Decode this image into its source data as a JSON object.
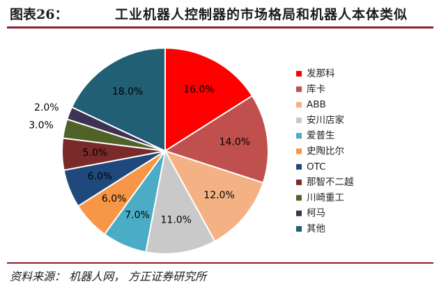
{
  "header": {
    "figure_label": "图表26：",
    "title": "工业机器人控制器的市场格局和机器人本体类似"
  },
  "source": "资料来源： 机器人网， 方正证券研究所",
  "chart_data": {
    "type": "pie",
    "unit": "%",
    "legend_position": "right",
    "slices": [
      {
        "label": "发那科",
        "value": 16.0,
        "display": "16.0%",
        "color": "#ff0000"
      },
      {
        "label": "库卡",
        "value": 14.0,
        "display": "14.0%",
        "color": "#c0504d"
      },
      {
        "label": "ABB",
        "value": 12.0,
        "display": "12.0%",
        "color": "#f4b183"
      },
      {
        "label": "安川店家",
        "value": 11.0,
        "display": "11.0%",
        "color": "#c9c9c9"
      },
      {
        "label": "爱普生",
        "value": 7.0,
        "display": "7.0%",
        "color": "#4bacc6"
      },
      {
        "label": "史陶比尔",
        "value": 6.0,
        "display": "6.0%",
        "color": "#f79646"
      },
      {
        "label": "OTC",
        "value": 6.0,
        "display": "6.0%",
        "color": "#1f497d"
      },
      {
        "label": "那智不二越",
        "value": 5.0,
        "display": "5.0%",
        "color": "#7b2a2a"
      },
      {
        "label": "川崎重工",
        "value": 3.0,
        "display": "3.0%",
        "color": "#4f6228"
      },
      {
        "label": "柯马",
        "value": 2.0,
        "display": "2.0%",
        "color": "#3f3151"
      },
      {
        "label": "其他",
        "value": 18.0,
        "display": "18.0%",
        "color": "#215f75"
      }
    ]
  }
}
